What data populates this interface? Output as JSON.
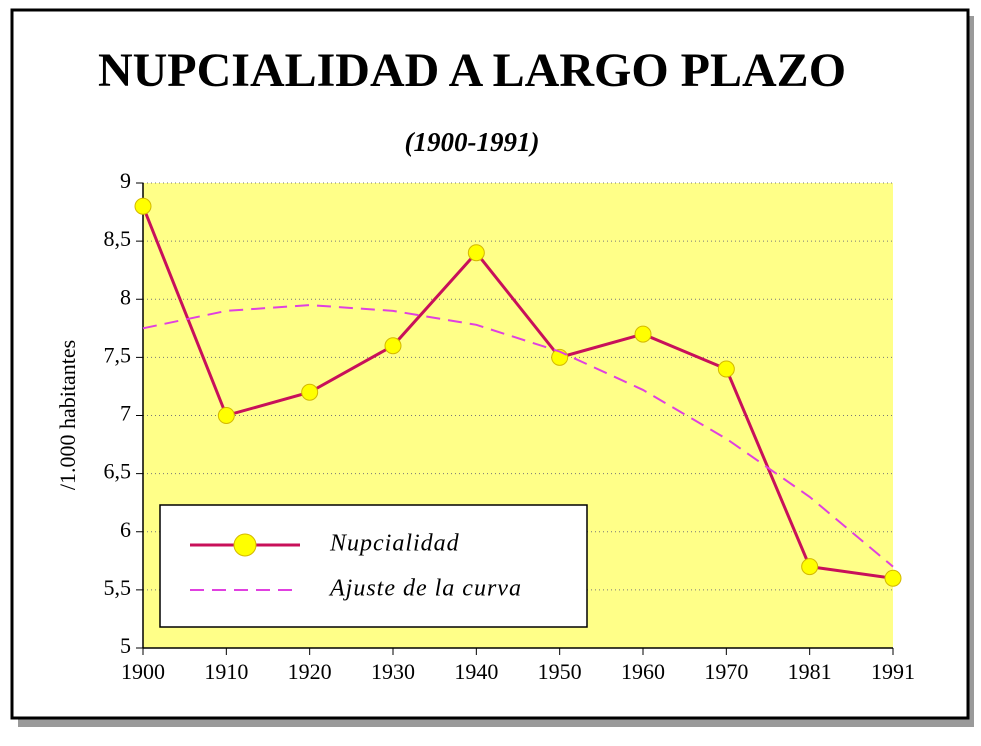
{
  "chart_data": {
    "type": "line",
    "title": "NUPCIALIDAD A LARGO PLAZO",
    "subtitle": "(1900-1991)",
    "y_label": "/1.000 habitantes",
    "categories": [
      "1900",
      "1910",
      "1920",
      "1930",
      "1940",
      "1950",
      "1960",
      "1970",
      "1981",
      "1991"
    ],
    "series": [
      {
        "name": "Nupcialidad",
        "color": "#c8105a",
        "marker_color": "#ffff00",
        "dashed": false,
        "values": [
          8.8,
          7.0,
          7.2,
          7.6,
          8.4,
          7.5,
          7.7,
          7.4,
          5.7,
          5.6
        ]
      },
      {
        "name": "Ajuste de la curva",
        "color": "#e040e0",
        "dashed": true,
        "values": [
          7.75,
          7.9,
          7.95,
          7.9,
          7.78,
          7.55,
          7.22,
          6.8,
          6.3,
          5.7
        ]
      }
    ],
    "ylim": [
      5,
      9
    ],
    "yticks": [
      5,
      {
        "value": 5.5,
        "label": "5,5"
      },
      6,
      {
        "value": 6.5,
        "label": "6,5"
      },
      7,
      {
        "value": 7.5,
        "label": "7,5"
      },
      8,
      {
        "value": 8.5,
        "label": "8,5"
      },
      9
    ],
    "grid": true,
    "plot_background": "#ffff88",
    "legend": "lower left"
  }
}
